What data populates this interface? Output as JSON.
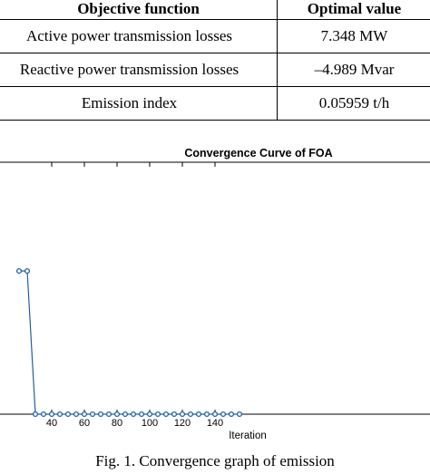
{
  "table": {
    "headers": [
      "Objective function",
      "Optimal value"
    ],
    "rows": [
      [
        "Active power transmission losses",
        "7.348 MW"
      ],
      [
        "Reactive power transmission losses",
        "–4.989 Mvar"
      ],
      [
        "Emission index",
        "0.05959 t/h"
      ]
    ]
  },
  "chart_data": {
    "type": "line",
    "title": "Convergence Curve of FOA",
    "xlabel": "Iteration",
    "ylabel": "",
    "xticks": [
      40,
      60,
      80,
      100,
      120,
      140
    ],
    "x": [
      20,
      25,
      30,
      35,
      40,
      45,
      50,
      55,
      60,
      65,
      70,
      75,
      80,
      85,
      90,
      95,
      100,
      105,
      110,
      115,
      120,
      125,
      130,
      135,
      140,
      145,
      150,
      155
    ],
    "y": [
      0.6,
      0.6,
      0,
      0,
      0,
      0,
      0,
      0,
      0,
      0,
      0,
      0,
      0,
      0,
      0,
      0,
      0,
      0,
      0,
      0,
      0,
      0,
      0,
      0,
      0,
      0,
      0,
      0
    ],
    "color": "#1f5fa8",
    "marker": "circle"
  },
  "caption": "Fig. 1. Convergence graph of emission"
}
